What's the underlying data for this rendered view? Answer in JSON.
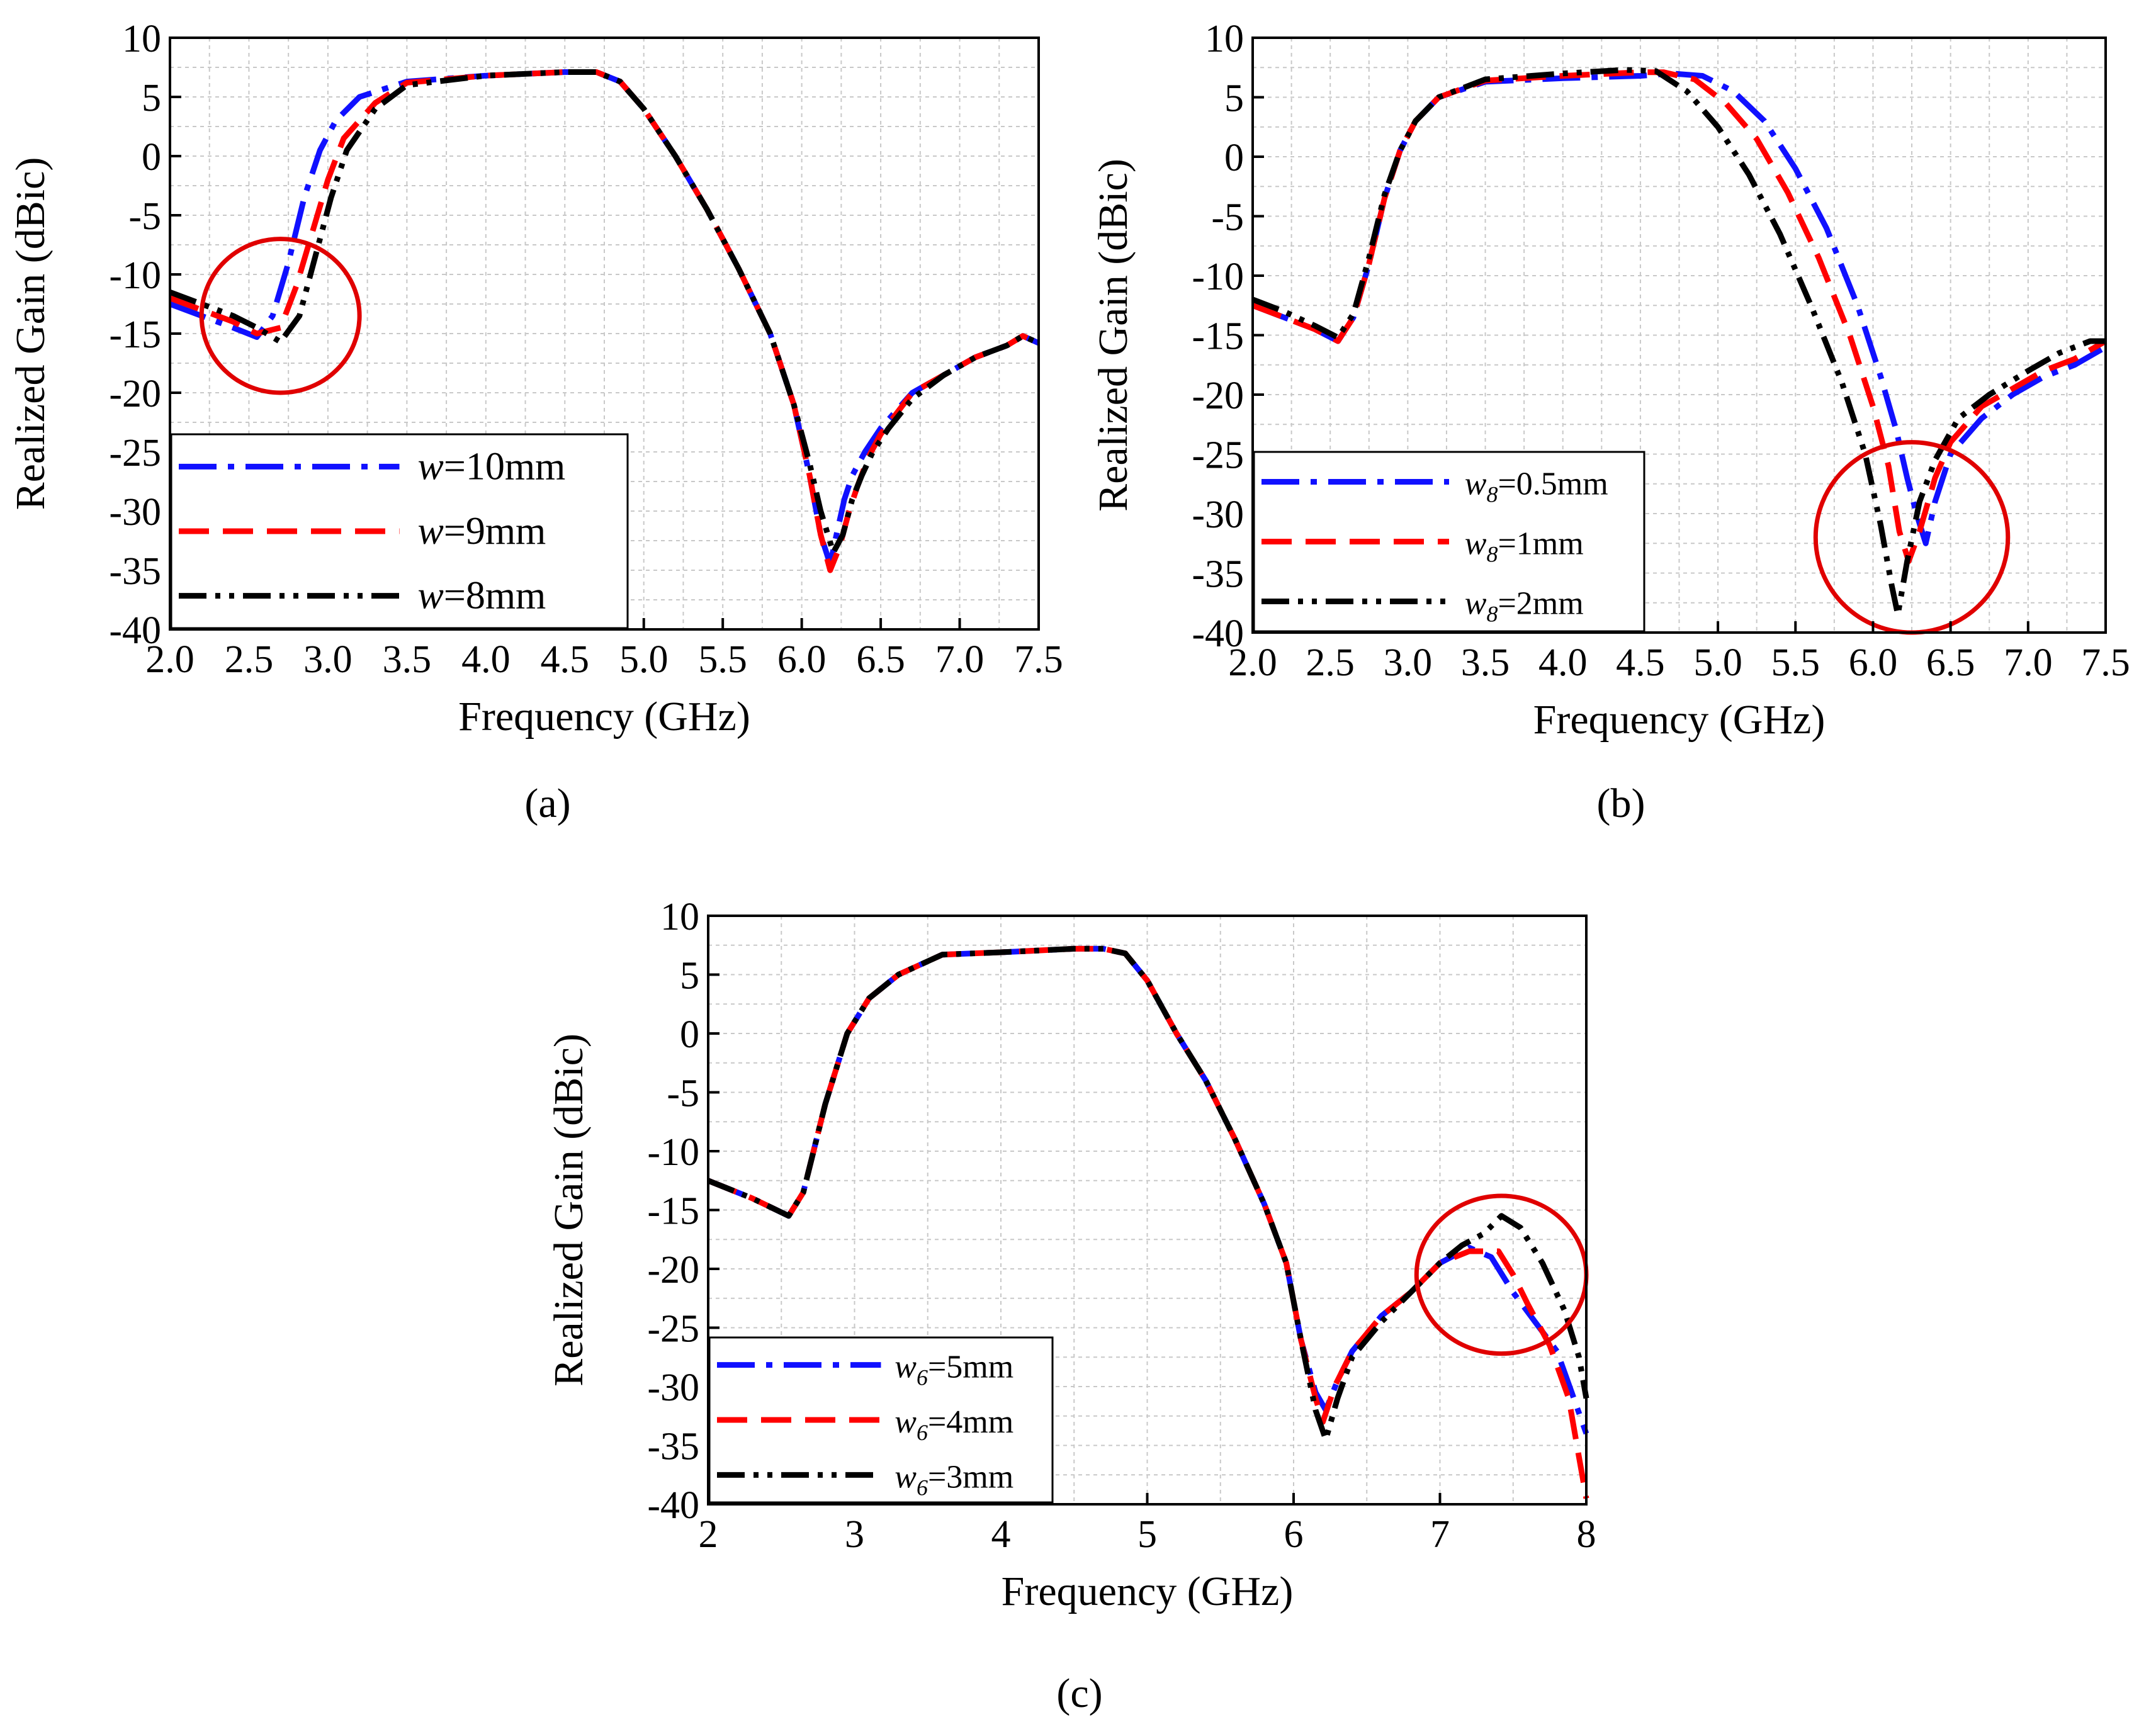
{
  "figure": {
    "captions": [
      "(a)",
      "(b)",
      "(c)"
    ]
  },
  "colors": {
    "blue": "#1010ff",
    "red": "#ff0000",
    "black": "#000000",
    "grid": "#c8c8c8",
    "annotation": "#e00000"
  },
  "chart_data": [
    {
      "type": "line",
      "panel": "a",
      "xlabel": "Frequency (GHz)",
      "ylabel": "Realized Gain (dBic)",
      "xlim": [
        2.0,
        7.5
      ],
      "ylim": [
        -40,
        10
      ],
      "xticks": [
        2.0,
        2.5,
        3.0,
        3.5,
        4.0,
        4.5,
        5.0,
        5.5,
        6.0,
        6.5,
        7.0,
        7.5
      ],
      "xtick_labels": [
        "2.0",
        "2.5",
        "3.0",
        "3.5",
        "4.0",
        "4.5",
        "5.0",
        "5.5",
        "6.0",
        "6.5",
        "7.0",
        "7.5"
      ],
      "yticks": [
        10,
        5,
        0,
        -5,
        -10,
        -15,
        -20,
        -25,
        -30,
        -35,
        -40
      ],
      "ytick_labels": [
        "10",
        "5",
        "0",
        "-5",
        "-10",
        "-15",
        "-20",
        "-25",
        "-30",
        "-35",
        "-40"
      ],
      "grid": true,
      "legend_position": "bottom-left",
      "annotation": {
        "type": "circle",
        "cx": 2.7,
        "cy": -13.5,
        "rx": 0.5,
        "ry": 6.5
      },
      "series": [
        {
          "name": "w=10mm",
          "var": "w",
          "sub": "",
          "val": "=10mm",
          "color": "blue",
          "dash": "dashdot",
          "x": [
            2.0,
            2.2,
            2.4,
            2.55,
            2.65,
            2.75,
            2.85,
            2.95,
            3.05,
            3.2,
            3.5,
            4.0,
            4.5,
            4.7,
            4.85,
            5.0,
            5.2,
            5.4,
            5.6,
            5.8,
            5.95,
            6.05,
            6.12,
            6.18,
            6.22,
            6.27,
            6.32,
            6.4,
            6.5,
            6.7,
            6.9,
            7.1,
            7.3,
            7.4,
            7.5
          ],
          "y": [
            -12.5,
            -13.5,
            -14.5,
            -15.3,
            -13.5,
            -9,
            -3.5,
            0.5,
            3.0,
            5.0,
            6.3,
            6.8,
            7.1,
            7.1,
            6.3,
            4.0,
            0,
            -4.5,
            -9.5,
            -15,
            -21,
            -27,
            -32,
            -34.5,
            -32,
            -29,
            -27,
            -25,
            -23,
            -20,
            -18.5,
            -17,
            -16,
            -15.2,
            -15.8
          ]
        },
        {
          "name": "w=9mm",
          "var": "w",
          "sub": "",
          "val": "=9mm",
          "color": "red",
          "dash": "dashed",
          "x": [
            2.0,
            2.2,
            2.4,
            2.55,
            2.7,
            2.8,
            2.9,
            3.0,
            3.1,
            3.3,
            3.5,
            4.0,
            4.5,
            4.7,
            4.85,
            5.0,
            5.2,
            5.4,
            5.6,
            5.8,
            5.95,
            6.05,
            6.12,
            6.18,
            6.24,
            6.3,
            6.35,
            6.42,
            6.5,
            6.7,
            6.9,
            7.1,
            7.3,
            7.4,
            7.5
          ],
          "y": [
            -12,
            -13,
            -14,
            -15,
            -14.5,
            -11,
            -6.5,
            -2,
            1.5,
            4.5,
            6.2,
            6.8,
            7.1,
            7.1,
            6.3,
            4.0,
            0,
            -4.5,
            -9.5,
            -15,
            -21,
            -27,
            -32,
            -35,
            -33,
            -30,
            -28,
            -25.5,
            -23.5,
            -20,
            -18.5,
            -17,
            -16,
            -15.2,
            -15.8
          ]
        },
        {
          "name": "w=8mm",
          "var": "w",
          "sub": "",
          "val": "=8mm",
          "color": "black",
          "dash": "dashdotdot",
          "x": [
            2.0,
            2.2,
            2.4,
            2.55,
            2.7,
            2.82,
            2.92,
            3.02,
            3.12,
            3.3,
            3.5,
            4.0,
            4.5,
            4.7,
            4.85,
            5.0,
            5.2,
            5.4,
            5.6,
            5.8,
            5.95,
            6.05,
            6.12,
            6.2,
            6.26,
            6.32,
            6.38,
            6.45,
            6.55,
            6.7,
            6.9,
            7.1,
            7.3,
            7.4,
            7.5
          ],
          "y": [
            -11.5,
            -12.5,
            -13.5,
            -14.5,
            -15.7,
            -13.5,
            -8.5,
            -3.5,
            0.5,
            4.0,
            6.0,
            6.8,
            7.1,
            7.1,
            6.3,
            4.0,
            0,
            -4.5,
            -9.5,
            -15,
            -21,
            -26,
            -30,
            -33.5,
            -32,
            -29,
            -27,
            -25,
            -23,
            -20.5,
            -18.5,
            -17,
            -16,
            -15.2,
            -15.8
          ]
        }
      ]
    },
    {
      "type": "line",
      "panel": "b",
      "xlabel": "Frequency (GHz)",
      "ylabel": "Realized Gain (dBic)",
      "xlim": [
        2.0,
        7.5
      ],
      "ylim": [
        -40,
        10
      ],
      "xticks": [
        2.0,
        2.5,
        3.0,
        3.5,
        4.0,
        4.5,
        5.0,
        5.5,
        6.0,
        6.5,
        7.0,
        7.5
      ],
      "xtick_labels": [
        "2.0",
        "2.5",
        "3.0",
        "3.5",
        "4.0",
        "4.5",
        "5.0",
        "5.5",
        "6.0",
        "6.5",
        "7.0",
        "7.5"
      ],
      "yticks": [
        10,
        5,
        0,
        -5,
        -10,
        -15,
        -20,
        -25,
        -30,
        -35,
        -40
      ],
      "ytick_labels": [
        "10",
        "5",
        "0",
        "-5",
        "-10",
        "-15",
        "-20",
        "-25",
        "-30",
        "-35",
        "-40"
      ],
      "grid": true,
      "legend_position": "bottom-left",
      "annotation": {
        "type": "circle",
        "cx": 6.25,
        "cy": -32,
        "rx": 0.62,
        "ry": 8.0
      },
      "series": [
        {
          "name": "w8=0.5mm",
          "var": "w",
          "sub": "8",
          "val": "=0.5mm",
          "color": "blue",
          "dash": "dashdot",
          "x": [
            2.0,
            2.2,
            2.4,
            2.55,
            2.65,
            2.75,
            2.85,
            2.95,
            3.05,
            3.2,
            3.5,
            4.0,
            4.5,
            4.7,
            4.9,
            5.1,
            5.3,
            5.5,
            5.7,
            5.9,
            6.05,
            6.15,
            6.22,
            6.28,
            6.34,
            6.4,
            6.5,
            6.7,
            6.9,
            7.1,
            7.3,
            7.5
          ],
          "y": [
            -12.5,
            -13.5,
            -14.5,
            -15.5,
            -13.5,
            -9,
            -3.5,
            0.5,
            3,
            5,
            6.3,
            6.6,
            6.8,
            7.0,
            6.8,
            5.5,
            3.0,
            -1,
            -6,
            -12.5,
            -18.5,
            -23,
            -27,
            -30,
            -32.5,
            -29,
            -25,
            -22,
            -20,
            -18.5,
            -17.5,
            -16
          ]
        },
        {
          "name": "w8=1mm",
          "var": "w",
          "sub": "8",
          "val": "=1mm",
          "color": "red",
          "dash": "dashed",
          "x": [
            2.0,
            2.2,
            2.4,
            2.55,
            2.65,
            2.75,
            2.85,
            2.95,
            3.05,
            3.2,
            3.5,
            4.0,
            4.5,
            4.65,
            4.85,
            5.05,
            5.25,
            5.45,
            5.65,
            5.85,
            6.0,
            6.1,
            6.17,
            6.23,
            6.3,
            6.4,
            6.5,
            6.7,
            6.9,
            7.1,
            7.3,
            7.5
          ],
          "y": [
            -12.5,
            -13.5,
            -14.5,
            -15.5,
            -13.5,
            -9,
            -3.5,
            0.5,
            3,
            5,
            6.4,
            6.8,
            7.1,
            7.1,
            6.5,
            4.5,
            1.5,
            -3,
            -8.5,
            -15,
            -21,
            -26,
            -31.5,
            -34,
            -31.5,
            -27,
            -24,
            -21,
            -19.5,
            -18,
            -17,
            -15.5
          ]
        },
        {
          "name": "w8=2mm",
          "var": "w",
          "sub": "8",
          "val": "=2mm",
          "color": "black",
          "dash": "dashdotdot",
          "x": [
            2.0,
            2.2,
            2.4,
            2.55,
            2.65,
            2.75,
            2.85,
            2.95,
            3.05,
            3.2,
            3.5,
            4.0,
            4.4,
            4.6,
            4.8,
            5.0,
            5.2,
            5.4,
            5.6,
            5.8,
            5.95,
            6.05,
            6.12,
            6.16,
            6.22,
            6.3,
            6.4,
            6.55,
            6.75,
            7.0,
            7.2,
            7.4,
            7.5
          ],
          "y": [
            -12,
            -13,
            -14.2,
            -15.2,
            -13.2,
            -8.5,
            -3.2,
            0.5,
            3,
            5,
            6.5,
            7.0,
            7.3,
            7.2,
            5.5,
            2.5,
            -1.5,
            -6.5,
            -12.5,
            -19,
            -25,
            -31,
            -36,
            -38.5,
            -34,
            -29,
            -25.5,
            -22,
            -20,
            -18,
            -16.5,
            -15.5,
            -15.5
          ]
        }
      ]
    },
    {
      "type": "line",
      "panel": "c",
      "xlabel": "Frequency (GHz)",
      "ylabel": "Realized Gain (dBic)",
      "xlim": [
        2,
        8
      ],
      "ylim": [
        -40,
        10
      ],
      "xticks": [
        2,
        3,
        4,
        5,
        6,
        7,
        8
      ],
      "xtick_labels": [
        "2",
        "3",
        "4",
        "5",
        "6",
        "7",
        "8"
      ],
      "yticks": [
        10,
        5,
        0,
        -5,
        -10,
        -15,
        -20,
        -25,
        -30,
        -35,
        -40
      ],
      "ytick_labels": [
        "10",
        "5",
        "0",
        "-5",
        "-10",
        "-15",
        "-20",
        "-25",
        "-30",
        "-35",
        "-40"
      ],
      "grid": true,
      "legend_position": "bottom-left",
      "annotation": {
        "type": "circle",
        "cx": 7.42,
        "cy": -20.5,
        "rx": 0.58,
        "ry": 6.7
      },
      "series": [
        {
          "name": "w6=5mm",
          "var": "w",
          "sub": "6",
          "val": "=5mm",
          "color": "blue",
          "dash": "dashdot",
          "x": [
            2.0,
            2.3,
            2.55,
            2.65,
            2.8,
            2.95,
            3.1,
            3.3,
            3.6,
            4.0,
            4.5,
            4.7,
            4.85,
            5.0,
            5.2,
            5.4,
            5.6,
            5.8,
            5.95,
            6.05,
            6.15,
            6.22,
            6.3,
            6.4,
            6.6,
            6.8,
            7.0,
            7.2,
            7.35,
            7.5,
            7.65,
            7.8,
            7.9,
            8.0
          ],
          "y": [
            -12.5,
            -14,
            -15.5,
            -13.5,
            -6,
            0,
            3,
            5,
            6.7,
            6.9,
            7.2,
            7.2,
            6.8,
            4.5,
            0,
            -4,
            -9,
            -14.5,
            -19.5,
            -26,
            -30.5,
            -32,
            -29.5,
            -27,
            -24,
            -22,
            -19.5,
            -18.2,
            -19,
            -22,
            -24.5,
            -27,
            -30.5,
            -34
          ]
        },
        {
          "name": "w6=4mm",
          "var": "w",
          "sub": "6",
          "val": "=4mm",
          "color": "red",
          "dash": "dashed",
          "x": [
            2.0,
            2.3,
            2.55,
            2.65,
            2.8,
            2.95,
            3.1,
            3.3,
            3.6,
            4.0,
            4.5,
            4.7,
            4.85,
            5.0,
            5.2,
            5.4,
            5.6,
            5.8,
            5.95,
            6.05,
            6.15,
            6.2,
            6.28,
            6.4,
            6.6,
            6.8,
            7.0,
            7.2,
            7.4,
            7.5,
            7.6,
            7.75,
            7.88,
            7.95,
            8.0
          ],
          "y": [
            -12.5,
            -14,
            -15.5,
            -13.5,
            -6,
            0,
            3,
            5,
            6.7,
            6.9,
            7.2,
            7.2,
            6.8,
            4.5,
            0,
            -4,
            -9,
            -14.5,
            -19.5,
            -26,
            -31,
            -33,
            -30,
            -27,
            -24,
            -22,
            -19.5,
            -18.5,
            -18.5,
            -20.5,
            -23,
            -26.5,
            -31,
            -36,
            -39.5
          ]
        },
        {
          "name": "w6=3mm",
          "var": "w",
          "sub": "6",
          "val": "=3mm",
          "color": "black",
          "dash": "dashdotdot",
          "x": [
            2.0,
            2.3,
            2.55,
            2.65,
            2.8,
            2.95,
            3.1,
            3.3,
            3.6,
            4.0,
            4.5,
            4.7,
            4.85,
            5.0,
            5.2,
            5.4,
            5.6,
            5.8,
            5.95,
            6.05,
            6.15,
            6.22,
            6.3,
            6.4,
            6.6,
            6.8,
            7.0,
            7.15,
            7.3,
            7.42,
            7.55,
            7.7,
            7.85,
            7.95,
            8.0
          ],
          "y": [
            -12.5,
            -14,
            -15.5,
            -13.5,
            -6,
            0,
            3,
            5,
            6.7,
            6.9,
            7.2,
            7.2,
            6.8,
            4.5,
            0,
            -4,
            -9,
            -14.5,
            -19.5,
            -26,
            -32,
            -34.5,
            -31,
            -27.5,
            -24.5,
            -22,
            -19.5,
            -18,
            -17,
            -15.5,
            -16.5,
            -19.5,
            -23.5,
            -27.5,
            -31
          ]
        }
      ]
    }
  ]
}
